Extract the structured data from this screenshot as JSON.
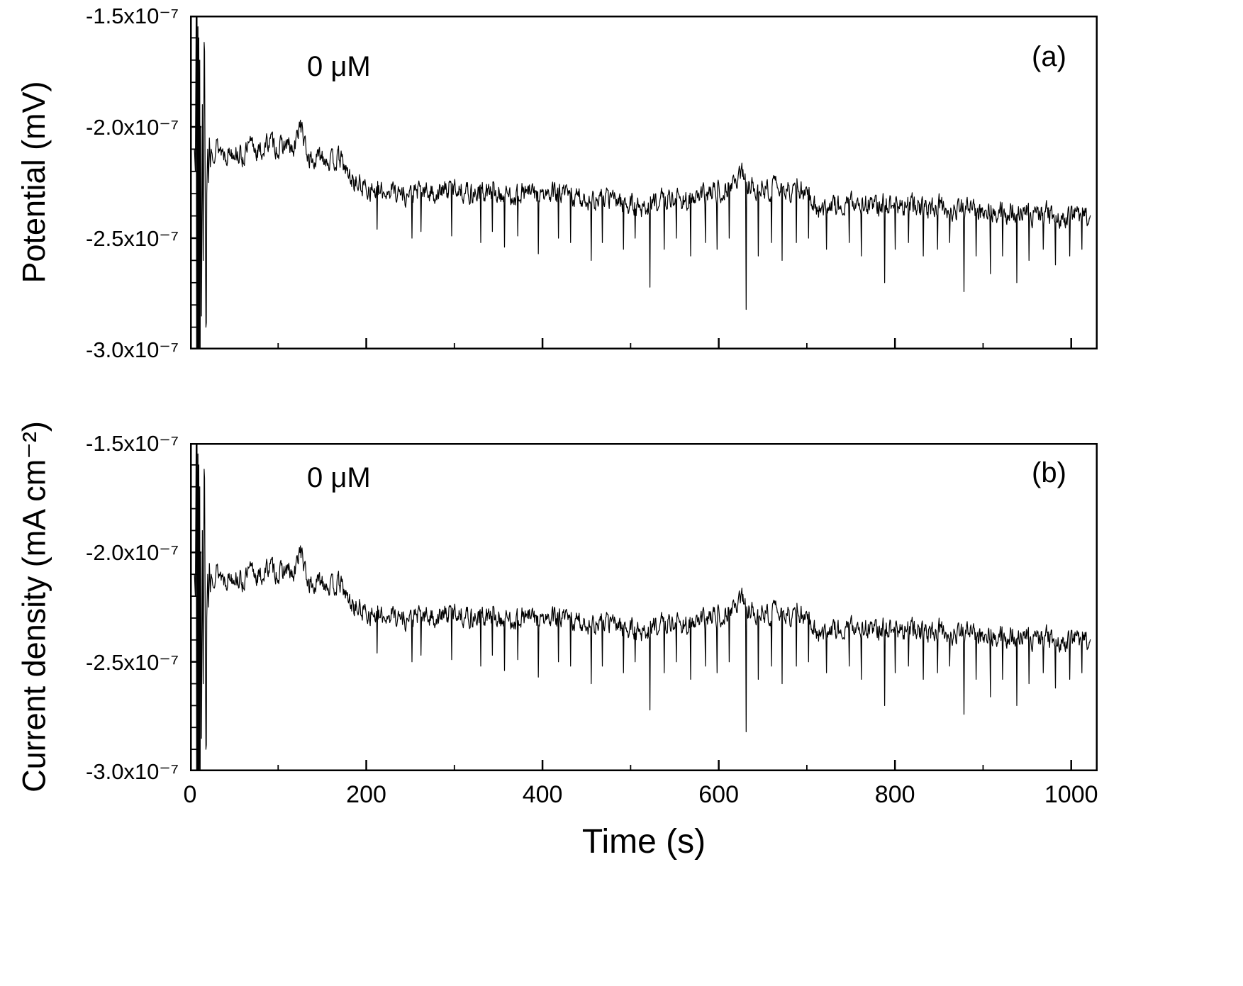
{
  "figure": {
    "background": "#ffffff",
    "line_color": "#000000"
  },
  "chart_data": {
    "type": "line",
    "title": "",
    "xlabel": "Time (s)",
    "xlim": [
      0,
      1030
    ],
    "ylim": [
      -3.0,
      -1.5
    ],
    "y_scale_note": "y values expressed in units of 1e-7",
    "x_ticks": [
      {
        "value": 0,
        "label": "0"
      },
      {
        "value": 200,
        "label": "200"
      },
      {
        "value": 400,
        "label": "400"
      },
      {
        "value": 600,
        "label": "600"
      },
      {
        "value": 800,
        "label": "800"
      },
      {
        "value": 1000,
        "label": "1000"
      }
    ],
    "x_minor_ticks": [
      100,
      300,
      500,
      700,
      900
    ],
    "y_ticks": [
      {
        "value": -1.5,
        "label": "-1.5x10⁻⁷"
      },
      {
        "value": -2.0,
        "label": "-2.0x10⁻⁷"
      },
      {
        "value": -2.5,
        "label": "-2.5x10⁻⁷"
      },
      {
        "value": -3.0,
        "label": "-3.0x10⁻⁷"
      }
    ],
    "y_minor_step": 0.1,
    "grid": false,
    "legend": "none",
    "panels": [
      {
        "id": "a",
        "panel_label": "(a)",
        "ylabel": "Potential (mV)",
        "annotation": "0 μM"
      },
      {
        "id": "b",
        "panel_label": "(b)",
        "ylabel": "Current density (mA cm⁻²)",
        "annotation": "0 μM"
      }
    ],
    "series": [
      {
        "name": "0 μM",
        "color": "#000000",
        "synthesis": {
          "seed": 13,
          "x_start": 24.5,
          "x_step": 0.6,
          "x_end": 1022,
          "noise_amp": 0.04,
          "noise_smooth": 0.45,
          "trend": [
            [
              24,
              -2.12
            ],
            [
              30,
              -2.08
            ],
            [
              40,
              -2.12
            ],
            [
              50,
              -2.1
            ],
            [
              60,
              -2.14
            ],
            [
              70,
              -2.08
            ],
            [
              80,
              -2.12
            ],
            [
              90,
              -2.06
            ],
            [
              100,
              -2.1
            ],
            [
              110,
              -2.08
            ],
            [
              118,
              -2.12
            ],
            [
              125,
              -1.97
            ],
            [
              132,
              -2.12
            ],
            [
              140,
              -2.16
            ],
            [
              150,
              -2.12
            ],
            [
              160,
              -2.16
            ],
            [
              170,
              -2.14
            ],
            [
              180,
              -2.22
            ],
            [
              190,
              -2.26
            ],
            [
              200,
              -2.27
            ],
            [
              215,
              -2.3
            ],
            [
              230,
              -2.28
            ],
            [
              245,
              -2.31
            ],
            [
              260,
              -2.29
            ],
            [
              280,
              -2.3
            ],
            [
              300,
              -2.27
            ],
            [
              320,
              -2.3
            ],
            [
              340,
              -2.29
            ],
            [
              360,
              -2.31
            ],
            [
              380,
              -2.29
            ],
            [
              400,
              -2.31
            ],
            [
              420,
              -2.3
            ],
            [
              440,
              -2.32
            ],
            [
              460,
              -2.33
            ],
            [
              480,
              -2.32
            ],
            [
              500,
              -2.35
            ],
            [
              515,
              -2.37
            ],
            [
              530,
              -2.33
            ],
            [
              550,
              -2.32
            ],
            [
              570,
              -2.33
            ],
            [
              590,
              -2.3
            ],
            [
              605,
              -2.28
            ],
            [
              618,
              -2.25
            ],
            [
              625,
              -2.2
            ],
            [
              632,
              -2.27
            ],
            [
              640,
              -2.26
            ],
            [
              650,
              -2.29
            ],
            [
              665,
              -2.27
            ],
            [
              680,
              -2.29
            ],
            [
              695,
              -2.28
            ],
            [
              705,
              -2.32
            ],
            [
              715,
              -2.37
            ],
            [
              730,
              -2.34
            ],
            [
              745,
              -2.36
            ],
            [
              760,
              -2.33
            ],
            [
              775,
              -2.36
            ],
            [
              790,
              -2.34
            ],
            [
              805,
              -2.36
            ],
            [
              820,
              -2.35
            ],
            [
              835,
              -2.37
            ],
            [
              850,
              -2.35
            ],
            [
              865,
              -2.38
            ],
            [
              880,
              -2.36
            ],
            [
              895,
              -2.39
            ],
            [
              910,
              -2.37
            ],
            [
              925,
              -2.39
            ],
            [
              940,
              -2.37
            ],
            [
              955,
              -2.4
            ],
            [
              970,
              -2.38
            ],
            [
              985,
              -2.4
            ],
            [
              1000,
              -2.39
            ],
            [
              1010,
              -2.41
            ],
            [
              1022,
              -2.4
            ]
          ],
          "transient": [
            [
              5,
              -2.1
            ],
            [
              6,
              -2.2
            ],
            [
              7,
              -1.45
            ],
            [
              7.5,
              -3.1
            ],
            [
              8,
              -1.5
            ],
            [
              8.5,
              -3.1
            ],
            [
              9,
              -1.55
            ],
            [
              9.5,
              -3.05
            ],
            [
              10,
              -1.6
            ],
            [
              10.5,
              -3.1
            ],
            [
              11,
              -1.7
            ],
            [
              11.5,
              -3.0
            ],
            [
              12,
              -2.0
            ],
            [
              13,
              -2.85
            ],
            [
              14,
              -1.9
            ],
            [
              15,
              -2.6
            ],
            [
              16,
              -1.62
            ],
            [
              16.5,
              -1.66
            ],
            [
              17,
              -2.1
            ],
            [
              18,
              -2.9
            ],
            [
              18.5,
              -2.88
            ],
            [
              19,
              -2.3
            ],
            [
              20,
              -2.1
            ],
            [
              21,
              -2.25
            ],
            [
              22,
              -2.05
            ],
            [
              23,
              -2.18
            ],
            [
              24,
              -2.1
            ]
          ],
          "spikes": [
            [
              212,
              -2.46
            ],
            [
              252,
              -2.5
            ],
            [
              262,
              -2.47
            ],
            [
              297,
              -2.49
            ],
            [
              330,
              -2.52
            ],
            [
              343,
              -2.47
            ],
            [
              357,
              -2.54
            ],
            [
              372,
              -2.49
            ],
            [
              395,
              -2.57
            ],
            [
              418,
              -2.5
            ],
            [
              432,
              -2.52
            ],
            [
              455,
              -2.6
            ],
            [
              468,
              -2.52
            ],
            [
              492,
              -2.55
            ],
            [
              505,
              -2.5
            ],
            [
              522,
              -2.72
            ],
            [
              538,
              -2.55
            ],
            [
              552,
              -2.5
            ],
            [
              568,
              -2.58
            ],
            [
              585,
              -2.52
            ],
            [
              598,
              -2.55
            ],
            [
              612,
              -2.5
            ],
            [
              631,
              -2.82
            ],
            [
              645,
              -2.58
            ],
            [
              660,
              -2.52
            ],
            [
              672,
              -2.6
            ],
            [
              688,
              -2.52
            ],
            [
              702,
              -2.5
            ],
            [
              722,
              -2.55
            ],
            [
              748,
              -2.52
            ],
            [
              762,
              -2.58
            ],
            [
              788,
              -2.7
            ],
            [
              800,
              -2.55
            ],
            [
              815,
              -2.52
            ],
            [
              832,
              -2.58
            ],
            [
              848,
              -2.55
            ],
            [
              862,
              -2.52
            ],
            [
              878,
              -2.74
            ],
            [
              892,
              -2.58
            ],
            [
              908,
              -2.66
            ],
            [
              922,
              -2.58
            ],
            [
              938,
              -2.7
            ],
            [
              952,
              -2.6
            ],
            [
              968,
              -2.55
            ],
            [
              982,
              -2.62
            ],
            [
              998,
              -2.58
            ],
            [
              1012,
              -2.55
            ]
          ]
        }
      }
    ]
  }
}
